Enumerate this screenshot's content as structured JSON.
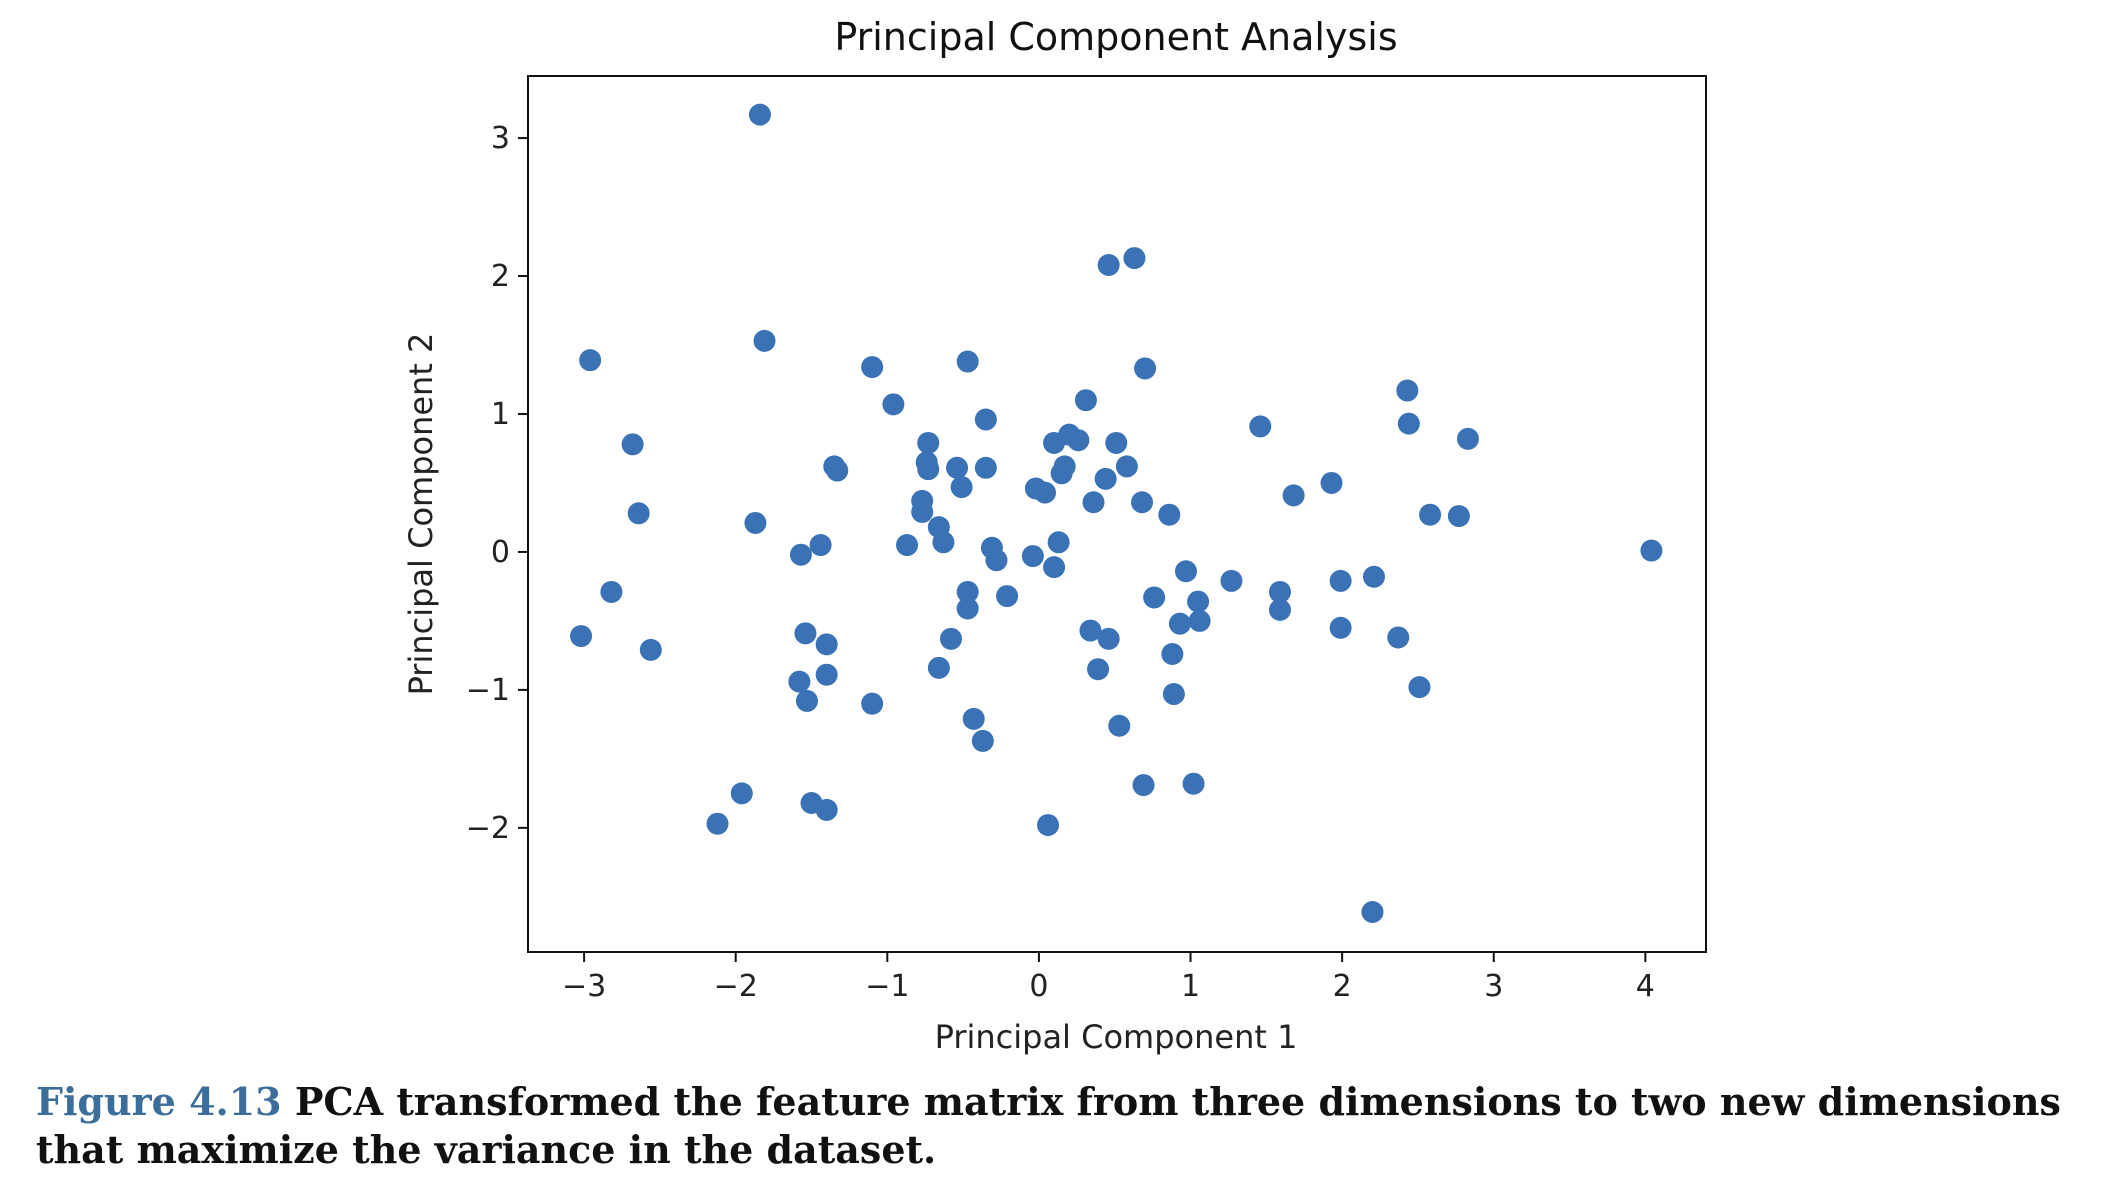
{
  "chart_data": {
    "type": "scatter",
    "title": "Principal Component Analysis",
    "xlabel": "Principal Component 1",
    "ylabel": "Principal Component 2",
    "xlim": [
      -3.37,
      4.4
    ],
    "ylim": [
      -2.9,
      3.45
    ],
    "xticks": [
      -3,
      -2,
      -1,
      0,
      1,
      2,
      3,
      4
    ],
    "yticks": [
      -2,
      -1,
      0,
      1,
      2,
      3
    ],
    "xtick_labels": [
      "−3",
      "−2",
      "−1",
      "0",
      "1",
      "2",
      "3",
      "4"
    ],
    "ytick_labels": [
      "−2",
      "−1",
      "0",
      "1",
      "2",
      "3"
    ],
    "grid": false,
    "marker_color": "#3a72b5",
    "points": [
      [
        -1.84,
        3.17
      ],
      [
        -1.81,
        1.53
      ],
      [
        -2.96,
        1.39
      ],
      [
        -2.68,
        0.78
      ],
      [
        -2.64,
        0.28
      ],
      [
        -2.82,
        -0.29
      ],
      [
        -3.02,
        -0.61
      ],
      [
        -2.56,
        -0.71
      ],
      [
        -1.87,
        0.21
      ],
      [
        -1.57,
        -0.02
      ],
      [
        -1.44,
        0.05
      ],
      [
        -1.35,
        0.62
      ],
      [
        -1.33,
        0.59
      ],
      [
        -1.1,
        1.34
      ],
      [
        -0.96,
        1.07
      ],
      [
        -0.47,
        1.38
      ],
      [
        -0.35,
        0.96
      ],
      [
        -0.73,
        0.79
      ],
      [
        -0.74,
        0.65
      ],
      [
        -0.73,
        0.6
      ],
      [
        -0.54,
        0.61
      ],
      [
        -0.51,
        0.47
      ],
      [
        -0.35,
        0.61
      ],
      [
        -0.77,
        0.37
      ],
      [
        -0.77,
        0.29
      ],
      [
        -0.66,
        0.18
      ],
      [
        -0.63,
        0.07
      ],
      [
        -0.87,
        0.05
      ],
      [
        -0.31,
        0.03
      ],
      [
        -0.28,
        -0.06
      ],
      [
        -0.47,
        -0.29
      ],
      [
        -0.47,
        -0.41
      ],
      [
        -0.21,
        -0.32
      ],
      [
        -0.58,
        -0.63
      ],
      [
        -0.66,
        -0.84
      ],
      [
        -1.54,
        -0.59
      ],
      [
        -1.4,
        -0.67
      ],
      [
        -1.58,
        -0.94
      ],
      [
        -1.4,
        -0.89
      ],
      [
        -1.53,
        -1.08
      ],
      [
        -1.1,
        -1.1
      ],
      [
        -0.43,
        -1.21
      ],
      [
        -0.37,
        -1.37
      ],
      [
        -1.5,
        -1.82
      ],
      [
        -1.4,
        -1.87
      ],
      [
        -1.96,
        -1.75
      ],
      [
        -2.12,
        -1.97
      ],
      [
        0.06,
        -1.98
      ],
      [
        0.46,
        2.08
      ],
      [
        0.63,
        2.13
      ],
      [
        0.7,
        1.33
      ],
      [
        0.31,
        1.1
      ],
      [
        0.1,
        0.79
      ],
      [
        0.2,
        0.85
      ],
      [
        0.26,
        0.81
      ],
      [
        0.17,
        0.62
      ],
      [
        0.15,
        0.57
      ],
      [
        0.51,
        0.79
      ],
      [
        0.58,
        0.62
      ],
      [
        0.44,
        0.53
      ],
      [
        -0.02,
        0.46
      ],
      [
        0.04,
        0.43
      ],
      [
        0.36,
        0.36
      ],
      [
        0.68,
        0.36
      ],
      [
        0.86,
        0.27
      ],
      [
        0.13,
        0.07
      ],
      [
        -0.04,
        -0.03
      ],
      [
        0.1,
        -0.11
      ],
      [
        0.97,
        -0.14
      ],
      [
        0.76,
        -0.33
      ],
      [
        1.05,
        -0.36
      ],
      [
        1.06,
        -0.5
      ],
      [
        0.93,
        -0.52
      ],
      [
        0.34,
        -0.57
      ],
      [
        0.46,
        -0.63
      ],
      [
        0.39,
        -0.85
      ],
      [
        0.88,
        -0.74
      ],
      [
        0.89,
        -1.03
      ],
      [
        0.53,
        -1.26
      ],
      [
        0.69,
        -1.69
      ],
      [
        1.02,
        -1.68
      ],
      [
        1.27,
        -0.21
      ],
      [
        1.59,
        -0.29
      ],
      [
        1.59,
        -0.42
      ],
      [
        1.46,
        0.91
      ],
      [
        1.68,
        0.41
      ],
      [
        1.93,
        0.5
      ],
      [
        1.99,
        -0.21
      ],
      [
        1.99,
        -0.55
      ],
      [
        2.21,
        -0.18
      ],
      [
        2.37,
        -0.62
      ],
      [
        2.51,
        -0.98
      ],
      [
        2.43,
        1.17
      ],
      [
        2.44,
        0.93
      ],
      [
        2.58,
        0.27
      ],
      [
        2.77,
        0.26
      ],
      [
        2.83,
        0.82
      ],
      [
        4.04,
        0.01
      ],
      [
        2.2,
        -2.61
      ]
    ]
  },
  "caption": {
    "label": "Figure 4.13",
    "text": " PCA transformed the feature matrix from three dimensions to two new dimensions that maximize the variance in the dataset."
  }
}
